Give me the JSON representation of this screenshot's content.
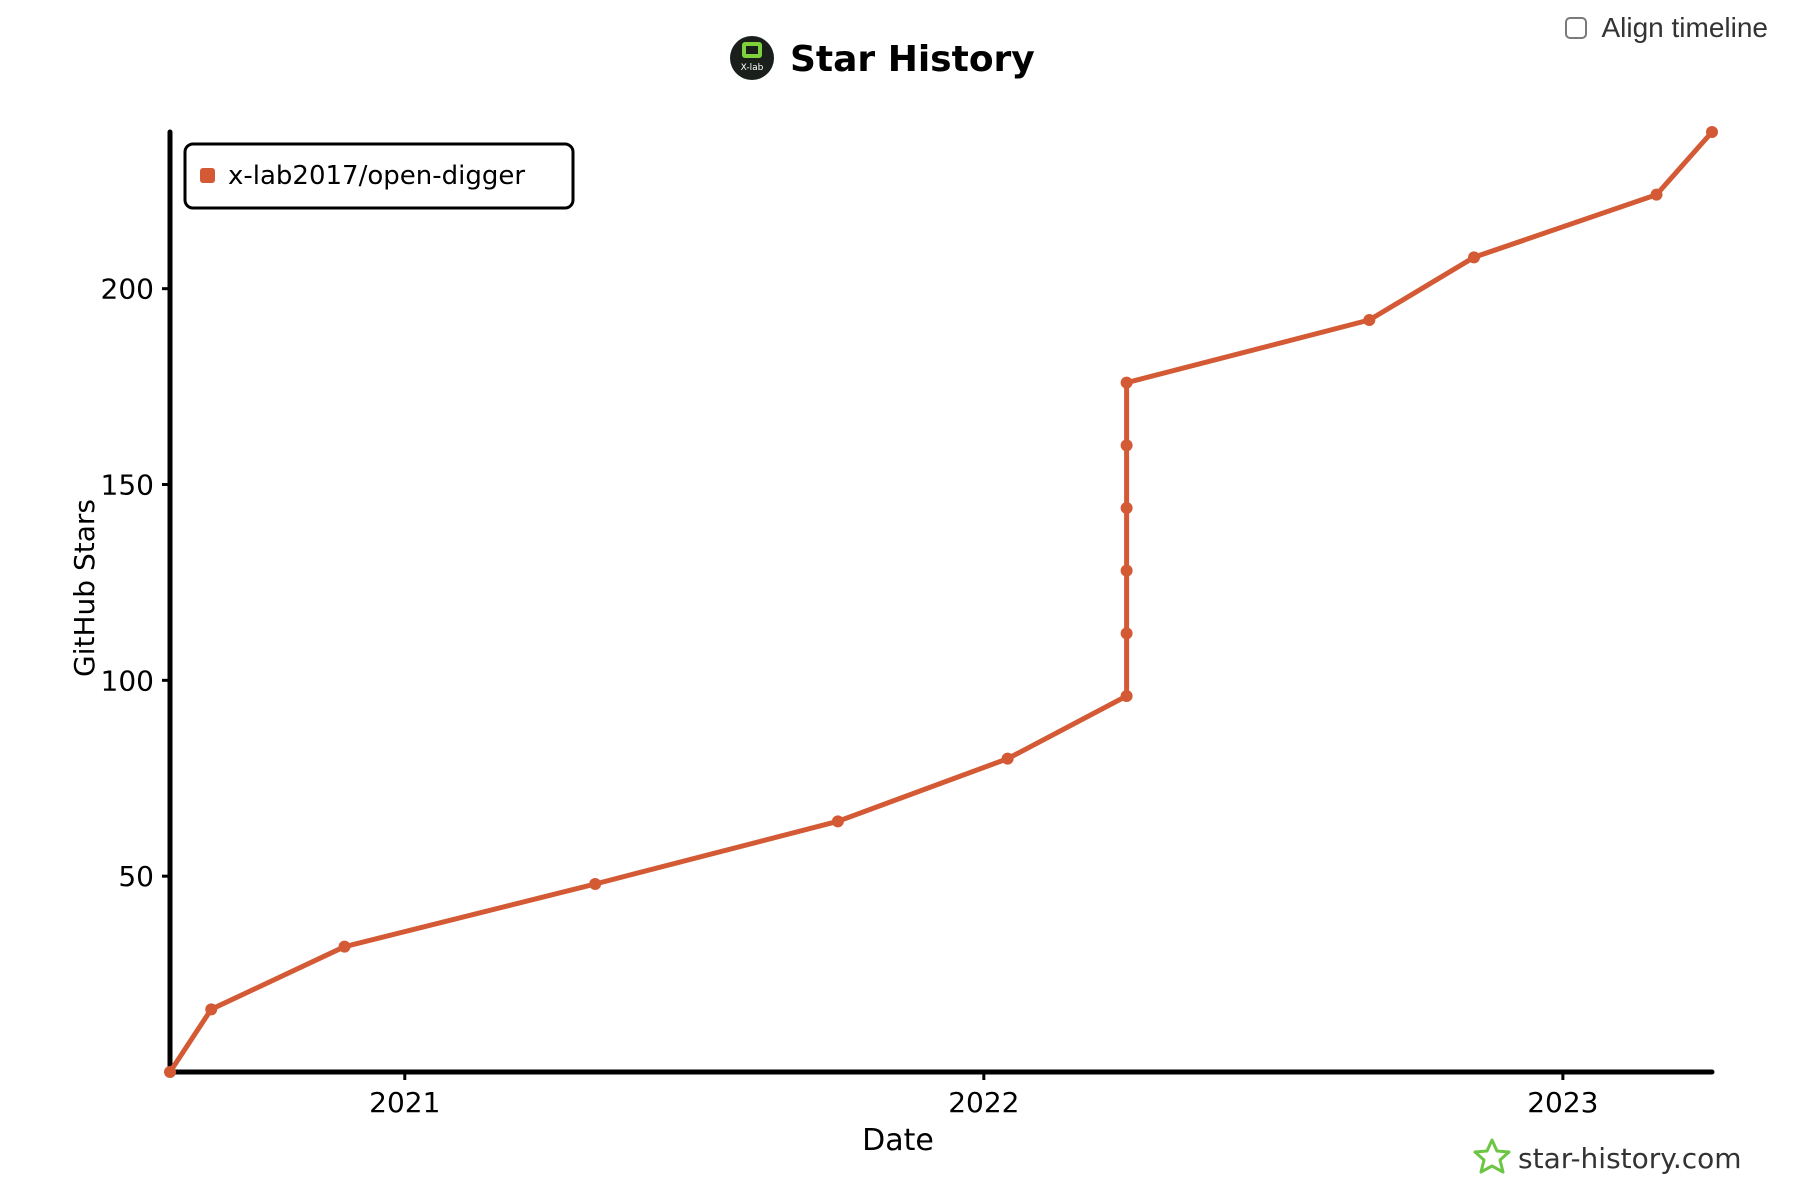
{
  "align_timeline": {
    "label": "Align timeline",
    "checked": false
  },
  "branding": {
    "watermark": "star-history.com",
    "logo_text": "X-lab"
  },
  "colors": {
    "series": "#d35a34",
    "axis": "#000000",
    "watermark_star": "#6cc644"
  },
  "chart_data": {
    "type": "line",
    "title": "Star History",
    "xlabel": "Date",
    "ylabel": "GitHub Stars",
    "x_ticks": [
      "2021",
      "2022",
      "2023"
    ],
    "y_ticks": [
      50,
      100,
      150,
      200
    ],
    "ylim": [
      0,
      240
    ],
    "xlim": [
      "2020-08-06",
      "2023-04-05"
    ],
    "legend_position": "top-left",
    "series": [
      {
        "name": "x-lab2017/open-digger",
        "points": [
          {
            "x": "2020-08-06",
            "y": 0
          },
          {
            "x": "2020-09-01",
            "y": 16
          },
          {
            "x": "2020-11-24",
            "y": 32
          },
          {
            "x": "2021-05-01",
            "y": 48
          },
          {
            "x": "2021-10-01",
            "y": 64
          },
          {
            "x": "2022-01-16",
            "y": 80
          },
          {
            "x": "2022-04-01",
            "y": 96
          },
          {
            "x": "2022-04-01",
            "y": 112
          },
          {
            "x": "2022-04-01",
            "y": 128
          },
          {
            "x": "2022-04-01",
            "y": 144
          },
          {
            "x": "2022-04-01",
            "y": 160
          },
          {
            "x": "2022-04-01",
            "y": 176
          },
          {
            "x": "2022-09-01",
            "y": 192
          },
          {
            "x": "2022-11-06",
            "y": 208
          },
          {
            "x": "2023-03-01",
            "y": 224
          },
          {
            "x": "2023-04-05",
            "y": 240
          }
        ]
      }
    ]
  }
}
